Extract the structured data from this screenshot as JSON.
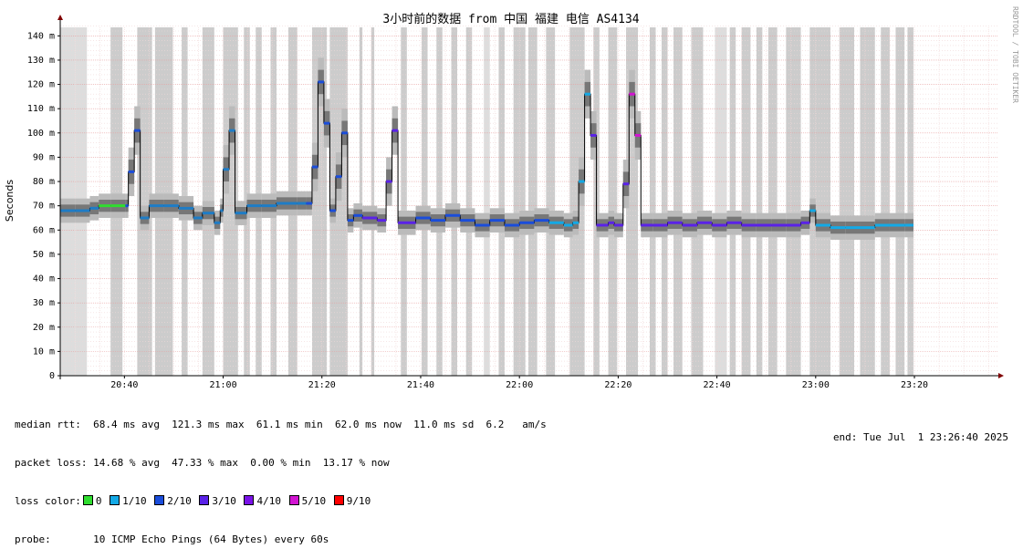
{
  "chart_data": {
    "type": "line",
    "title": "3小时前的数据 from 中国 福建 电信 AS4134",
    "ylabel": "Seconds",
    "y_unit_suffix": "m",
    "ylim": [
      0,
      145
    ],
    "yticks": [
      "0",
      "10 m",
      "20 m",
      "30 m",
      "40 m",
      "50 m",
      "60 m",
      "70 m",
      "80 m",
      "90 m",
      "100 m",
      "110 m",
      "120 m",
      "130 m",
      "140 m"
    ],
    "xlim": [
      "20:27",
      "23:37"
    ],
    "xticks": [
      "20:40",
      "21:00",
      "21:20",
      "21:40",
      "22:00",
      "22:20",
      "22:40",
      "23:00",
      "23:20"
    ],
    "side_label": "RRDTOOL / TOBI OETIKER",
    "median": [
      [
        20.45,
        68
      ],
      [
        20.5,
        68
      ],
      [
        20.55,
        69
      ],
      [
        20.58,
        70
      ],
      [
        20.62,
        70
      ],
      [
        20.67,
        70
      ],
      [
        20.68,
        84
      ],
      [
        20.7,
        101
      ],
      [
        20.72,
        65
      ],
      [
        20.75,
        70
      ],
      [
        20.8,
        70
      ],
      [
        20.85,
        69
      ],
      [
        20.9,
        65
      ],
      [
        20.93,
        67
      ],
      [
        20.97,
        63
      ],
      [
        20.99,
        68
      ],
      [
        21.0,
        85
      ],
      [
        21.02,
        101
      ],
      [
        21.04,
        67
      ],
      [
        21.08,
        70
      ],
      [
        21.13,
        70
      ],
      [
        21.18,
        71
      ],
      [
        21.25,
        71
      ],
      [
        21.28,
        71
      ],
      [
        21.3,
        86
      ],
      [
        21.32,
        121
      ],
      [
        21.34,
        104
      ],
      [
        21.36,
        68
      ],
      [
        21.38,
        82
      ],
      [
        21.4,
        100
      ],
      [
        21.42,
        64
      ],
      [
        21.44,
        66
      ],
      [
        21.47,
        65
      ],
      [
        21.52,
        64
      ],
      [
        21.55,
        80
      ],
      [
        21.57,
        101
      ],
      [
        21.59,
        63
      ],
      [
        21.65,
        65
      ],
      [
        21.7,
        64
      ],
      [
        21.75,
        66
      ],
      [
        21.8,
        64
      ],
      [
        21.85,
        62
      ],
      [
        21.9,
        64
      ],
      [
        21.95,
        62
      ],
      [
        22.0,
        63
      ],
      [
        22.05,
        64
      ],
      [
        22.1,
        63
      ],
      [
        22.15,
        62
      ],
      [
        22.18,
        63
      ],
      [
        22.2,
        80
      ],
      [
        22.22,
        116
      ],
      [
        22.24,
        99
      ],
      [
        22.26,
        62
      ],
      [
        22.3,
        63
      ],
      [
        22.32,
        62
      ],
      [
        22.35,
        79
      ],
      [
        22.37,
        116
      ],
      [
        22.39,
        99
      ],
      [
        22.41,
        62
      ],
      [
        22.45,
        62
      ],
      [
        22.5,
        63
      ],
      [
        22.55,
        62
      ],
      [
        22.6,
        63
      ],
      [
        22.65,
        62
      ],
      [
        22.7,
        63
      ],
      [
        22.75,
        62
      ],
      [
        22.8,
        62
      ],
      [
        22.85,
        62
      ],
      [
        22.9,
        62
      ],
      [
        22.95,
        63
      ],
      [
        22.98,
        68
      ],
      [
        23.0,
        62
      ],
      [
        23.05,
        61
      ],
      [
        23.1,
        61
      ],
      [
        23.15,
        61
      ],
      [
        23.2,
        62
      ],
      [
        23.25,
        62
      ],
      [
        23.3,
        62
      ],
      [
        23.33,
        62
      ]
    ],
    "loss_segments": [
      {
        "from": 20.45,
        "to": 20.58,
        "color": "#1e7cc6"
      },
      {
        "from": 20.58,
        "to": 20.66,
        "color": "#2fdd2f"
      },
      {
        "from": 20.66,
        "to": 20.72,
        "color": "#1a4ddb"
      },
      {
        "from": 20.72,
        "to": 21.28,
        "color": "#1e7cc6"
      },
      {
        "from": 21.28,
        "to": 21.45,
        "color": "#1a4ddb"
      },
      {
        "from": 21.45,
        "to": 21.6,
        "color": "#5a22e8"
      },
      {
        "from": 21.6,
        "to": 22.1,
        "color": "#1a4ddb"
      },
      {
        "from": 22.1,
        "to": 22.24,
        "color": "#13a9e6"
      },
      {
        "from": 22.24,
        "to": 22.37,
        "color": "#5a22e8"
      },
      {
        "from": 22.37,
        "to": 22.41,
        "color": "#d214d2"
      },
      {
        "from": 22.41,
        "to": 22.98,
        "color": "#5a22e8"
      },
      {
        "from": 22.98,
        "to": 23.33,
        "color": "#13a9e6"
      }
    ],
    "loss_spikes": [
      {
        "from": 20.45,
        "to": 20.5,
        "pct": 30
      },
      {
        "from": 20.5,
        "to": 20.54,
        "pct": 30
      },
      {
        "from": 20.62,
        "to": 20.66,
        "pct": 100
      },
      {
        "from": 20.71,
        "to": 20.76,
        "pct": 100
      },
      {
        "from": 20.77,
        "to": 20.83,
        "pct": 100
      },
      {
        "from": 20.86,
        "to": 20.88,
        "pct": 100
      },
      {
        "from": 20.93,
        "to": 20.97,
        "pct": 100
      },
      {
        "from": 21.0,
        "to": 21.05,
        "pct": 100
      },
      {
        "from": 21.07,
        "to": 21.09,
        "pct": 100
      },
      {
        "from": 21.11,
        "to": 21.13,
        "pct": 100
      },
      {
        "from": 21.16,
        "to": 21.18,
        "pct": 100
      },
      {
        "from": 21.22,
        "to": 21.25,
        "pct": 100
      },
      {
        "from": 21.3,
        "to": 21.35,
        "pct": 100
      },
      {
        "from": 21.36,
        "to": 21.42,
        "pct": 100
      },
      {
        "from": 21.46,
        "to": 21.47,
        "pct": 100
      },
      {
        "from": 21.5,
        "to": 21.51,
        "pct": 100
      },
      {
        "from": 21.6,
        "to": 21.62,
        "pct": 100
      },
      {
        "from": 21.67,
        "to": 21.69,
        "pct": 100
      },
      {
        "from": 21.72,
        "to": 21.74,
        "pct": 100
      },
      {
        "from": 21.77,
        "to": 21.79,
        "pct": 100
      },
      {
        "from": 21.82,
        "to": 21.84,
        "pct": 100
      },
      {
        "from": 21.88,
        "to": 21.9,
        "pct": 40
      },
      {
        "from": 21.93,
        "to": 21.95,
        "pct": 100
      },
      {
        "from": 21.98,
        "to": 22.02,
        "pct": 100
      },
      {
        "from": 22.03,
        "to": 22.06,
        "pct": 100
      },
      {
        "from": 22.09,
        "to": 22.12,
        "pct": 100
      },
      {
        "from": 22.17,
        "to": 22.22,
        "pct": 100
      },
      {
        "from": 22.25,
        "to": 22.27,
        "pct": 100
      },
      {
        "from": 22.3,
        "to": 22.33,
        "pct": 100
      },
      {
        "from": 22.36,
        "to": 22.4,
        "pct": 100
      },
      {
        "from": 22.44,
        "to": 22.46,
        "pct": 100
      },
      {
        "from": 22.48,
        "to": 22.5,
        "pct": 100
      },
      {
        "from": 22.52,
        "to": 22.55,
        "pct": 100
      },
      {
        "from": 22.58,
        "to": 22.62,
        "pct": 100
      },
      {
        "from": 22.66,
        "to": 22.7,
        "pct": 30
      },
      {
        "from": 22.71,
        "to": 22.73,
        "pct": 100
      },
      {
        "from": 22.75,
        "to": 22.78,
        "pct": 100
      },
      {
        "from": 22.8,
        "to": 22.82,
        "pct": 100
      },
      {
        "from": 22.84,
        "to": 22.87,
        "pct": 100
      },
      {
        "from": 22.9,
        "to": 22.95,
        "pct": 100
      },
      {
        "from": 22.98,
        "to": 23.05,
        "pct": 100
      },
      {
        "from": 23.08,
        "to": 23.13,
        "pct": 100
      },
      {
        "from": 23.15,
        "to": 23.2,
        "pct": 100
      },
      {
        "from": 23.22,
        "to": 23.25,
        "pct": 100
      },
      {
        "from": 23.27,
        "to": 23.3,
        "pct": 100
      },
      {
        "from": 23.31,
        "to": 23.33,
        "pct": 100
      }
    ]
  },
  "stats": {
    "median_rtt": "median rtt:  68.4 ms avg  121.3 ms max  61.1 ms min  62.0 ms now  11.0 ms sd  6.2   am/s",
    "packet_loss": "packet loss: 14.68 % avg  47.33 % max  0.00 % min  13.17 % now",
    "loss_color_label": "loss color:",
    "probe": "probe:       10 ICMP Echo Pings (64 Bytes) every 60s",
    "end": "end: Tue Jul  1 23:26:40 2025"
  },
  "loss_legend": [
    {
      "label": "0",
      "color": "#2fdd2f"
    },
    {
      "label": "1/10",
      "color": "#13a9e6"
    },
    {
      "label": "2/10",
      "color": "#1a4ddb"
    },
    {
      "label": "3/10",
      "color": "#5a22e8"
    },
    {
      "label": "4/10",
      "color": "#7a12e8"
    },
    {
      "label": "5/10",
      "color": "#d214d2"
    },
    {
      "label": "9/10",
      "color": "#ff0000"
    }
  ]
}
